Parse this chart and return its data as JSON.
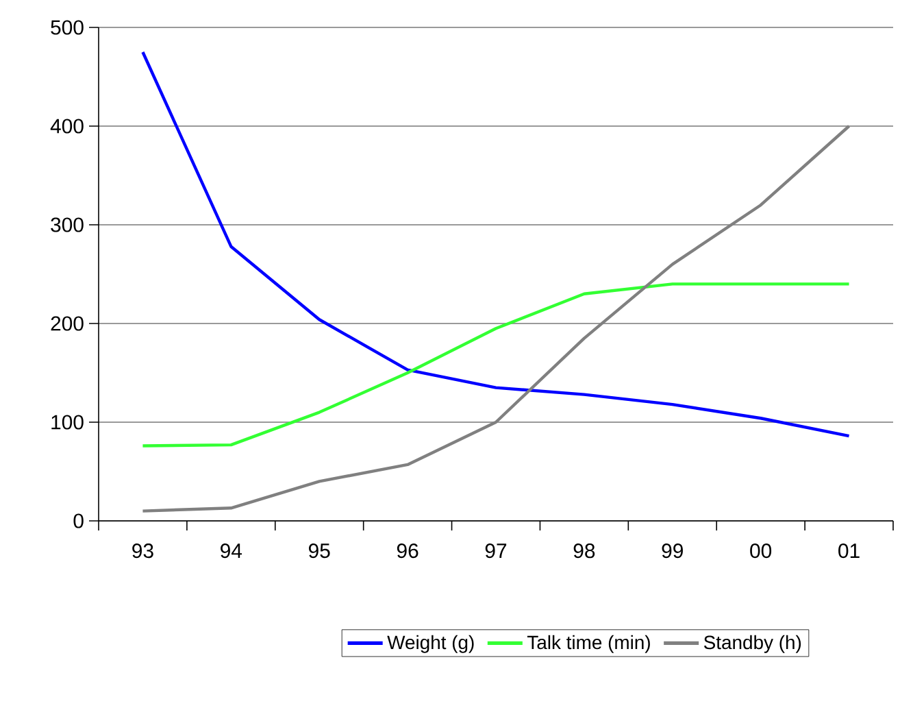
{
  "chart_data": {
    "type": "line",
    "categories": [
      "93",
      "94",
      "95",
      "96",
      "97",
      "98",
      "99",
      "00",
      "01"
    ],
    "series": [
      {
        "name": "Weight (g)",
        "color": "#0000ff",
        "values": [
          475,
          278,
          204,
          153,
          135,
          128,
          118,
          104,
          86
        ]
      },
      {
        "name": "Talk time (min)",
        "color": "#33ff33",
        "values": [
          76,
          77,
          110,
          150,
          195,
          230,
          240,
          240,
          240
        ]
      },
      {
        "name": "Standby (h)",
        "color": "#808080",
        "values": [
          10,
          13,
          40,
          57,
          100,
          185,
          260,
          320,
          400
        ]
      }
    ],
    "ylim": [
      0,
      500
    ],
    "yticks": [
      0,
      100,
      200,
      300,
      400,
      500
    ],
    "grid": "y",
    "legend": "bottom",
    "marker": "none",
    "line_style": "solid"
  }
}
